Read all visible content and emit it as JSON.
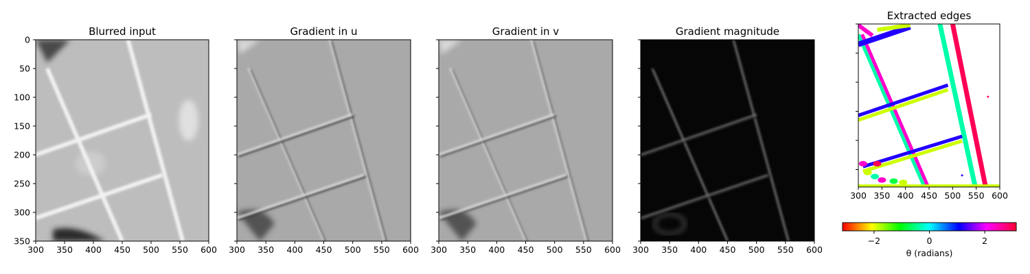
{
  "panels": [
    {
      "title": "Blurred input",
      "kind": "image-blurred"
    },
    {
      "title": "Gradient in u",
      "kind": "image-gradient-u"
    },
    {
      "title": "Gradient in v",
      "kind": "image-gradient-v"
    },
    {
      "title": "Gradient magnitude",
      "kind": "image-gradient-magnitude"
    },
    {
      "title": "Extracted edges",
      "kind": "edge-orientation-map"
    }
  ],
  "axes": {
    "x_ticks": [
      300,
      350,
      400,
      450,
      500,
      550,
      600
    ],
    "y_ticks": [
      0,
      50,
      100,
      150,
      200,
      250,
      300,
      350
    ],
    "xlim": [
      300,
      600
    ],
    "ylim": [
      350,
      0
    ],
    "edges_ylim": [
      280,
      0
    ],
    "edges_y_ticks": [
      0,
      50,
      100,
      150,
      200,
      250
    ]
  },
  "colorbar": {
    "label": "θ (radians)",
    "ticks": [
      -2,
      0,
      2
    ],
    "range": [
      -3.14,
      3.14
    ],
    "colormap": "hsv"
  },
  "chart_data": {
    "type": "heatmap",
    "xlim": [
      300,
      600
    ],
    "ylim": [
      350,
      0
    ],
    "lines": [
      {
        "name": "grid-line-1",
        "points": [
          [
            320,
            50
          ],
          [
            450,
            350
          ]
        ]
      },
      {
        "name": "grid-line-2",
        "points": [
          [
            460,
            0
          ],
          [
            555,
            350
          ]
        ]
      },
      {
        "name": "grid-line-3",
        "points": [
          [
            300,
            200
          ],
          [
            500,
            130
          ]
        ]
      },
      {
        "name": "grid-line-4",
        "points": [
          [
            300,
            310
          ],
          [
            520,
            235
          ]
        ]
      }
    ]
  },
  "colors": {
    "edge_magenta": "#ff00cc",
    "edge_cyan": "#00ffaa",
    "edge_blue": "#2200ff",
    "edge_yellow": "#ccff00",
    "edge_red": "#ff0055"
  }
}
